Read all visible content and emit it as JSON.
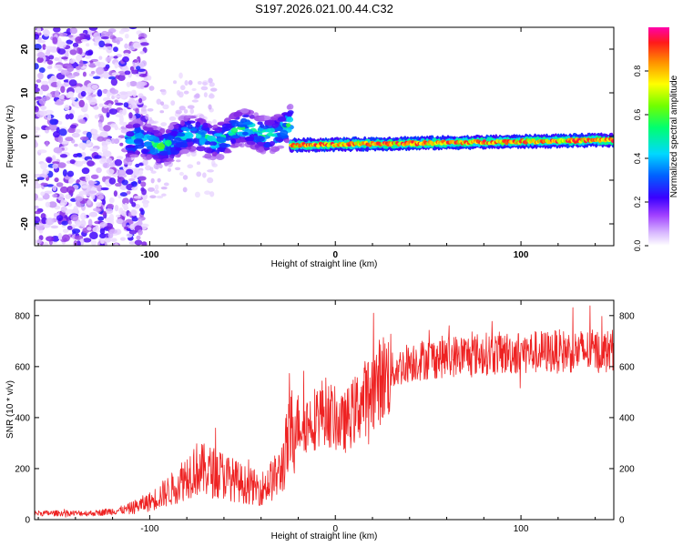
{
  "title": "S197.2026.021.00.44.C32",
  "colors": {
    "snr_line": "#ee2222",
    "frame": "#000000",
    "colormap": [
      "#ffffff",
      "#d9b8ff",
      "#8a2be2",
      "#3b00ff",
      "#0050ff",
      "#00d0ff",
      "#00ff80",
      "#60ff00",
      "#ffff00",
      "#ff9900",
      "#ff2020",
      "#ff00aa"
    ]
  },
  "chart_data": [
    {
      "type": "heatmap",
      "name": "spectrogram",
      "xlabel": "Height of straight line (km)",
      "ylabel": "Frequency (Hz)",
      "xlim": [
        -162,
        150
      ],
      "ylim": [
        -25,
        25
      ],
      "x_ticks": [
        -100,
        0,
        100
      ],
      "x_tick_labels": [
        "-100",
        "0",
        "100"
      ],
      "y_ticks": [
        20,
        10,
        0,
        -10,
        -20
      ],
      "y_tick_labels": [
        "20",
        "10",
        "0",
        "-10",
        "-20"
      ],
      "colorbar": {
        "label": "Normalized spectral amplitude",
        "range": [
          0,
          1
        ],
        "ticks": [
          0.0,
          0.2,
          0.4,
          0.6,
          0.8
        ],
        "tick_labels": [
          "0.0",
          "0.2",
          "0.4",
          "0.6",
          "0.8"
        ]
      },
      "features": [
        {
          "name": "noise-region",
          "x_range": [
            -162,
            -102
          ],
          "freq_range": [
            -25,
            25
          ],
          "amplitude": 0.1
        },
        {
          "name": "transition-band",
          "x_range": [
            -112,
            -24
          ],
          "center_freq_start": -2,
          "center_freq_end": 2,
          "half_width_hz": 4,
          "amplitude": 0.45
        },
        {
          "name": "stable-line",
          "x_range": [
            -24,
            150
          ],
          "center_freq_start": -2,
          "center_freq_end": -0.8,
          "half_width_hz": 1.5,
          "amplitude": 0.9
        }
      ]
    },
    {
      "type": "line",
      "name": "snr",
      "xlabel": "Height of straight line (km)",
      "ylabel": "SNR (10 * v/v)",
      "xlim": [
        -162,
        150
      ],
      "ylim": [
        0,
        860
      ],
      "x_ticks": [
        -100,
        0,
        100
      ],
      "x_tick_labels": [
        "-100",
        "0",
        "100"
      ],
      "y_ticks": [
        0,
        200,
        400,
        600,
        800
      ],
      "y_tick_labels": [
        "0",
        "200",
        "400",
        "600",
        "800"
      ],
      "trend_points": [
        {
          "x": -162,
          "y": 25
        },
        {
          "x": -130,
          "y": 25
        },
        {
          "x": -112,
          "y": 40
        },
        {
          "x": -100,
          "y": 70
        },
        {
          "x": -88,
          "y": 120
        },
        {
          "x": -76,
          "y": 200
        },
        {
          "x": -62,
          "y": 180
        },
        {
          "x": -50,
          "y": 140
        },
        {
          "x": -40,
          "y": 120
        },
        {
          "x": -30,
          "y": 180
        },
        {
          "x": -22,
          "y": 380
        },
        {
          "x": -14,
          "y": 380
        },
        {
          "x": -6,
          "y": 430
        },
        {
          "x": 4,
          "y": 370
        },
        {
          "x": 14,
          "y": 460
        },
        {
          "x": 26,
          "y": 560
        },
        {
          "x": 40,
          "y": 620
        },
        {
          "x": 60,
          "y": 640
        },
        {
          "x": 80,
          "y": 650
        },
        {
          "x": 100,
          "y": 655
        },
        {
          "x": 125,
          "y": 660
        },
        {
          "x": 150,
          "y": 660
        }
      ],
      "peak_max": 850
    }
  ]
}
